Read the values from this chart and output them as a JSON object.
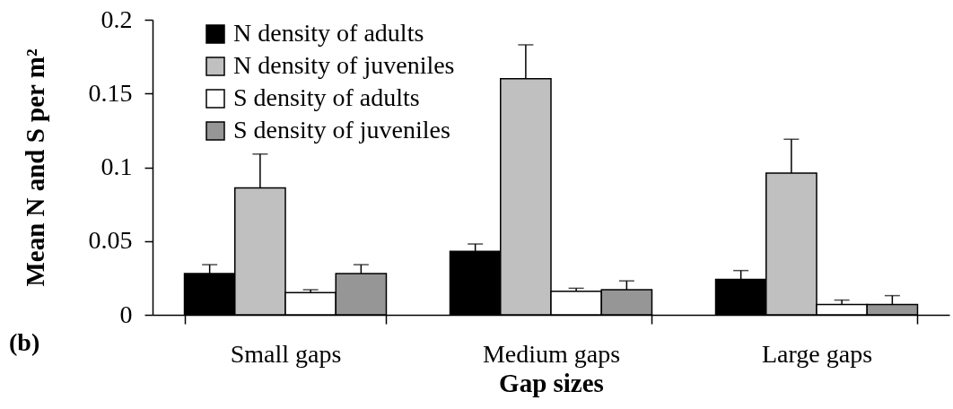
{
  "chart_data": {
    "type": "bar",
    "xlabel": "Gap sizes",
    "ylabel": "Mean N and S per m²",
    "annotations": [
      "(b)"
    ],
    "categories": [
      "Small gaps",
      "Medium gaps",
      "Large gaps"
    ],
    "series": [
      {
        "name": "N density of adults",
        "color": "#000000",
        "values": [
          0.028,
          0.043,
          0.024
        ],
        "errors": [
          [
            0.028,
            0.034
          ],
          [
            0.043,
            0.048
          ],
          [
            0.024,
            0.03
          ]
        ]
      },
      {
        "name": "N density of juveniles",
        "color": "#c0c0c0",
        "values": [
          0.086,
          0.16,
          0.096
        ],
        "errors": [
          [
            0.086,
            0.109
          ],
          [
            0.16,
            0.183
          ],
          [
            0.096,
            0.119
          ]
        ]
      },
      {
        "name": "S density of adults",
        "color": "#ffffff",
        "values": [
          0.015,
          0.016,
          0.007
        ],
        "errors": [
          [
            0.015,
            0.017
          ],
          [
            0.016,
            0.018
          ],
          [
            0.007,
            0.01
          ]
        ]
      },
      {
        "name": "S density of juveniles",
        "color": "#969696",
        "values": [
          0.028,
          0.017,
          0.007
        ],
        "errors": [
          [
            0.028,
            0.034
          ],
          [
            0.017,
            0.023
          ],
          [
            0.007,
            0.013
          ]
        ]
      }
    ],
    "ylim": [
      0,
      0.2
    ],
    "yticks": [
      0,
      0.05,
      0.1,
      0.15,
      0.2
    ],
    "legend": "top left"
  }
}
